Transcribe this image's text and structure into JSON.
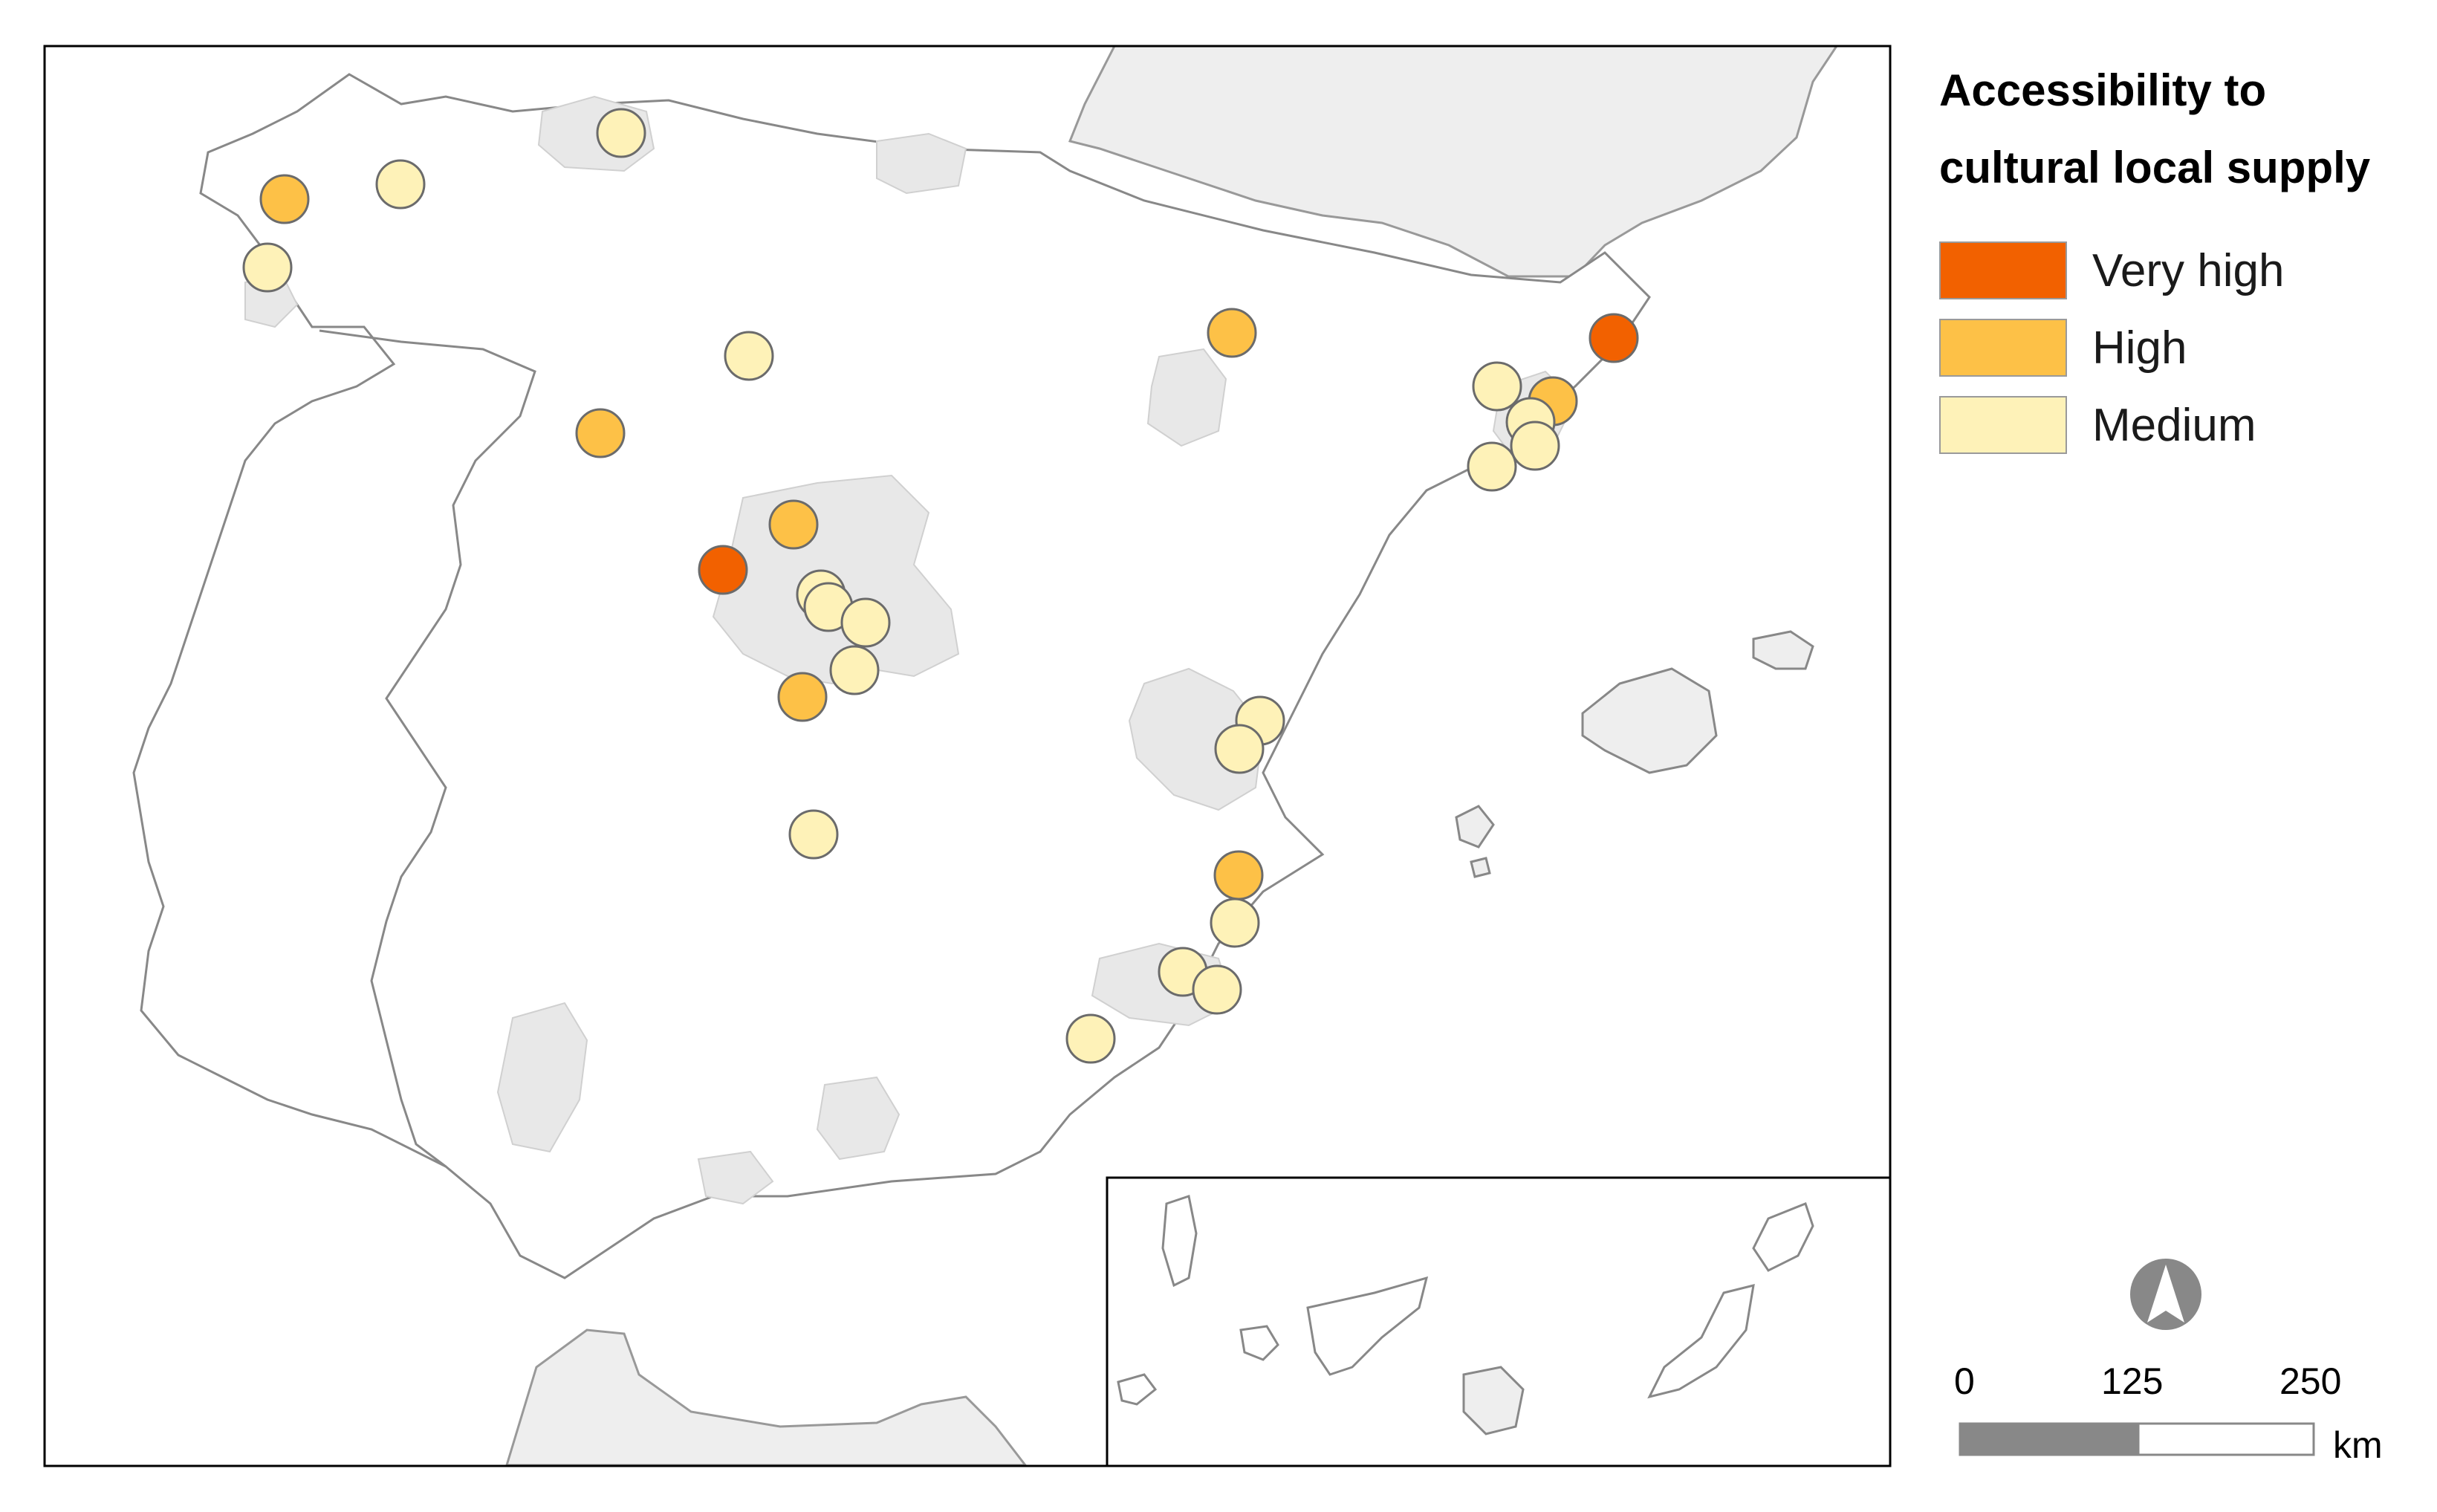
{
  "legend": {
    "title_line1": "Accessibility to",
    "title_line2": "cultural local supply",
    "items": [
      {
        "label": "Very high",
        "color": "#f26100"
      },
      {
        "label": "High",
        "color": "#fdc147"
      },
      {
        "label": "Medium",
        "color": "#fef2b8"
      }
    ]
  },
  "scale_bar": {
    "labels": [
      "0",
      "125",
      "250"
    ],
    "unit": "km"
  },
  "north_arrow": {
    "icon": "north-arrow-icon"
  },
  "colors": {
    "land_other": "#eeeeee",
    "urban_area": "#e8e8e8",
    "coast": "#888888",
    "circle_stroke": "#6b6b6b"
  }
}
